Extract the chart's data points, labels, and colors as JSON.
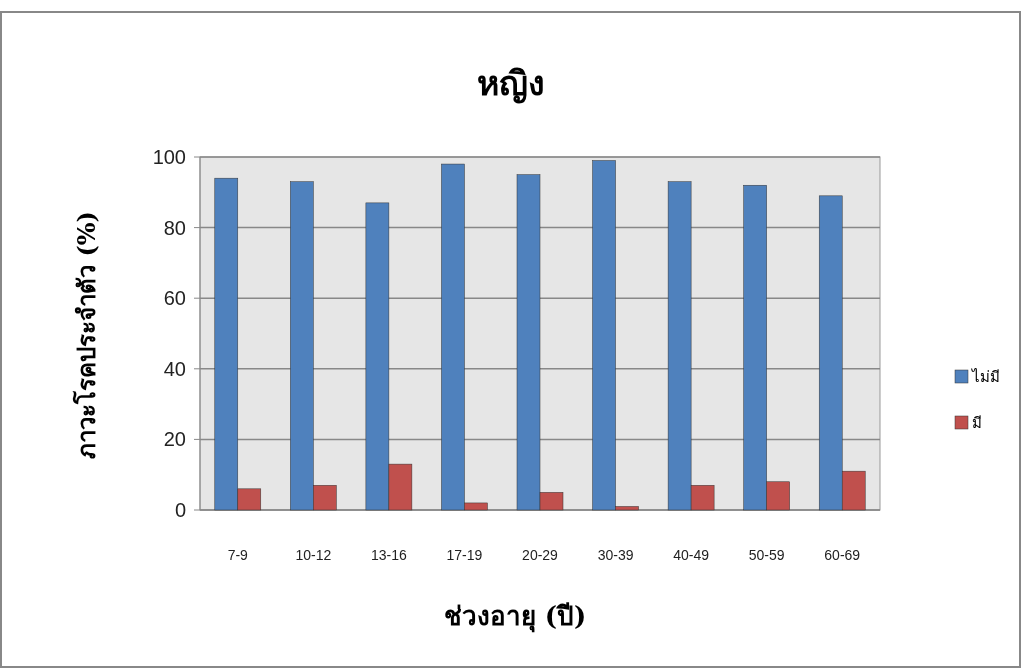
{
  "chart_data": {
    "type": "bar",
    "title": "หญิง",
    "xlabel": "ช่วงอายุ (ปี)",
    "ylabel": "ภาวะโรคประจำตัว (%)",
    "categories": [
      "7-9",
      "10-12",
      "13-16",
      "17-19",
      "20-29",
      "30-39",
      "40-49",
      "50-59",
      "60-69"
    ],
    "series": [
      {
        "name": "ไม่มี",
        "color": "#4f81bd",
        "values": [
          94,
          93,
          87,
          98,
          95,
          99,
          93,
          92,
          89
        ]
      },
      {
        "name": "มี",
        "color": "#c0504d",
        "values": [
          6,
          7,
          13,
          2,
          5,
          1,
          7,
          8,
          11
        ]
      }
    ],
    "ylim": [
      0,
      100
    ],
    "yticks": [
      0,
      20,
      40,
      60,
      80,
      100
    ],
    "grid": "y",
    "legend": "right"
  }
}
